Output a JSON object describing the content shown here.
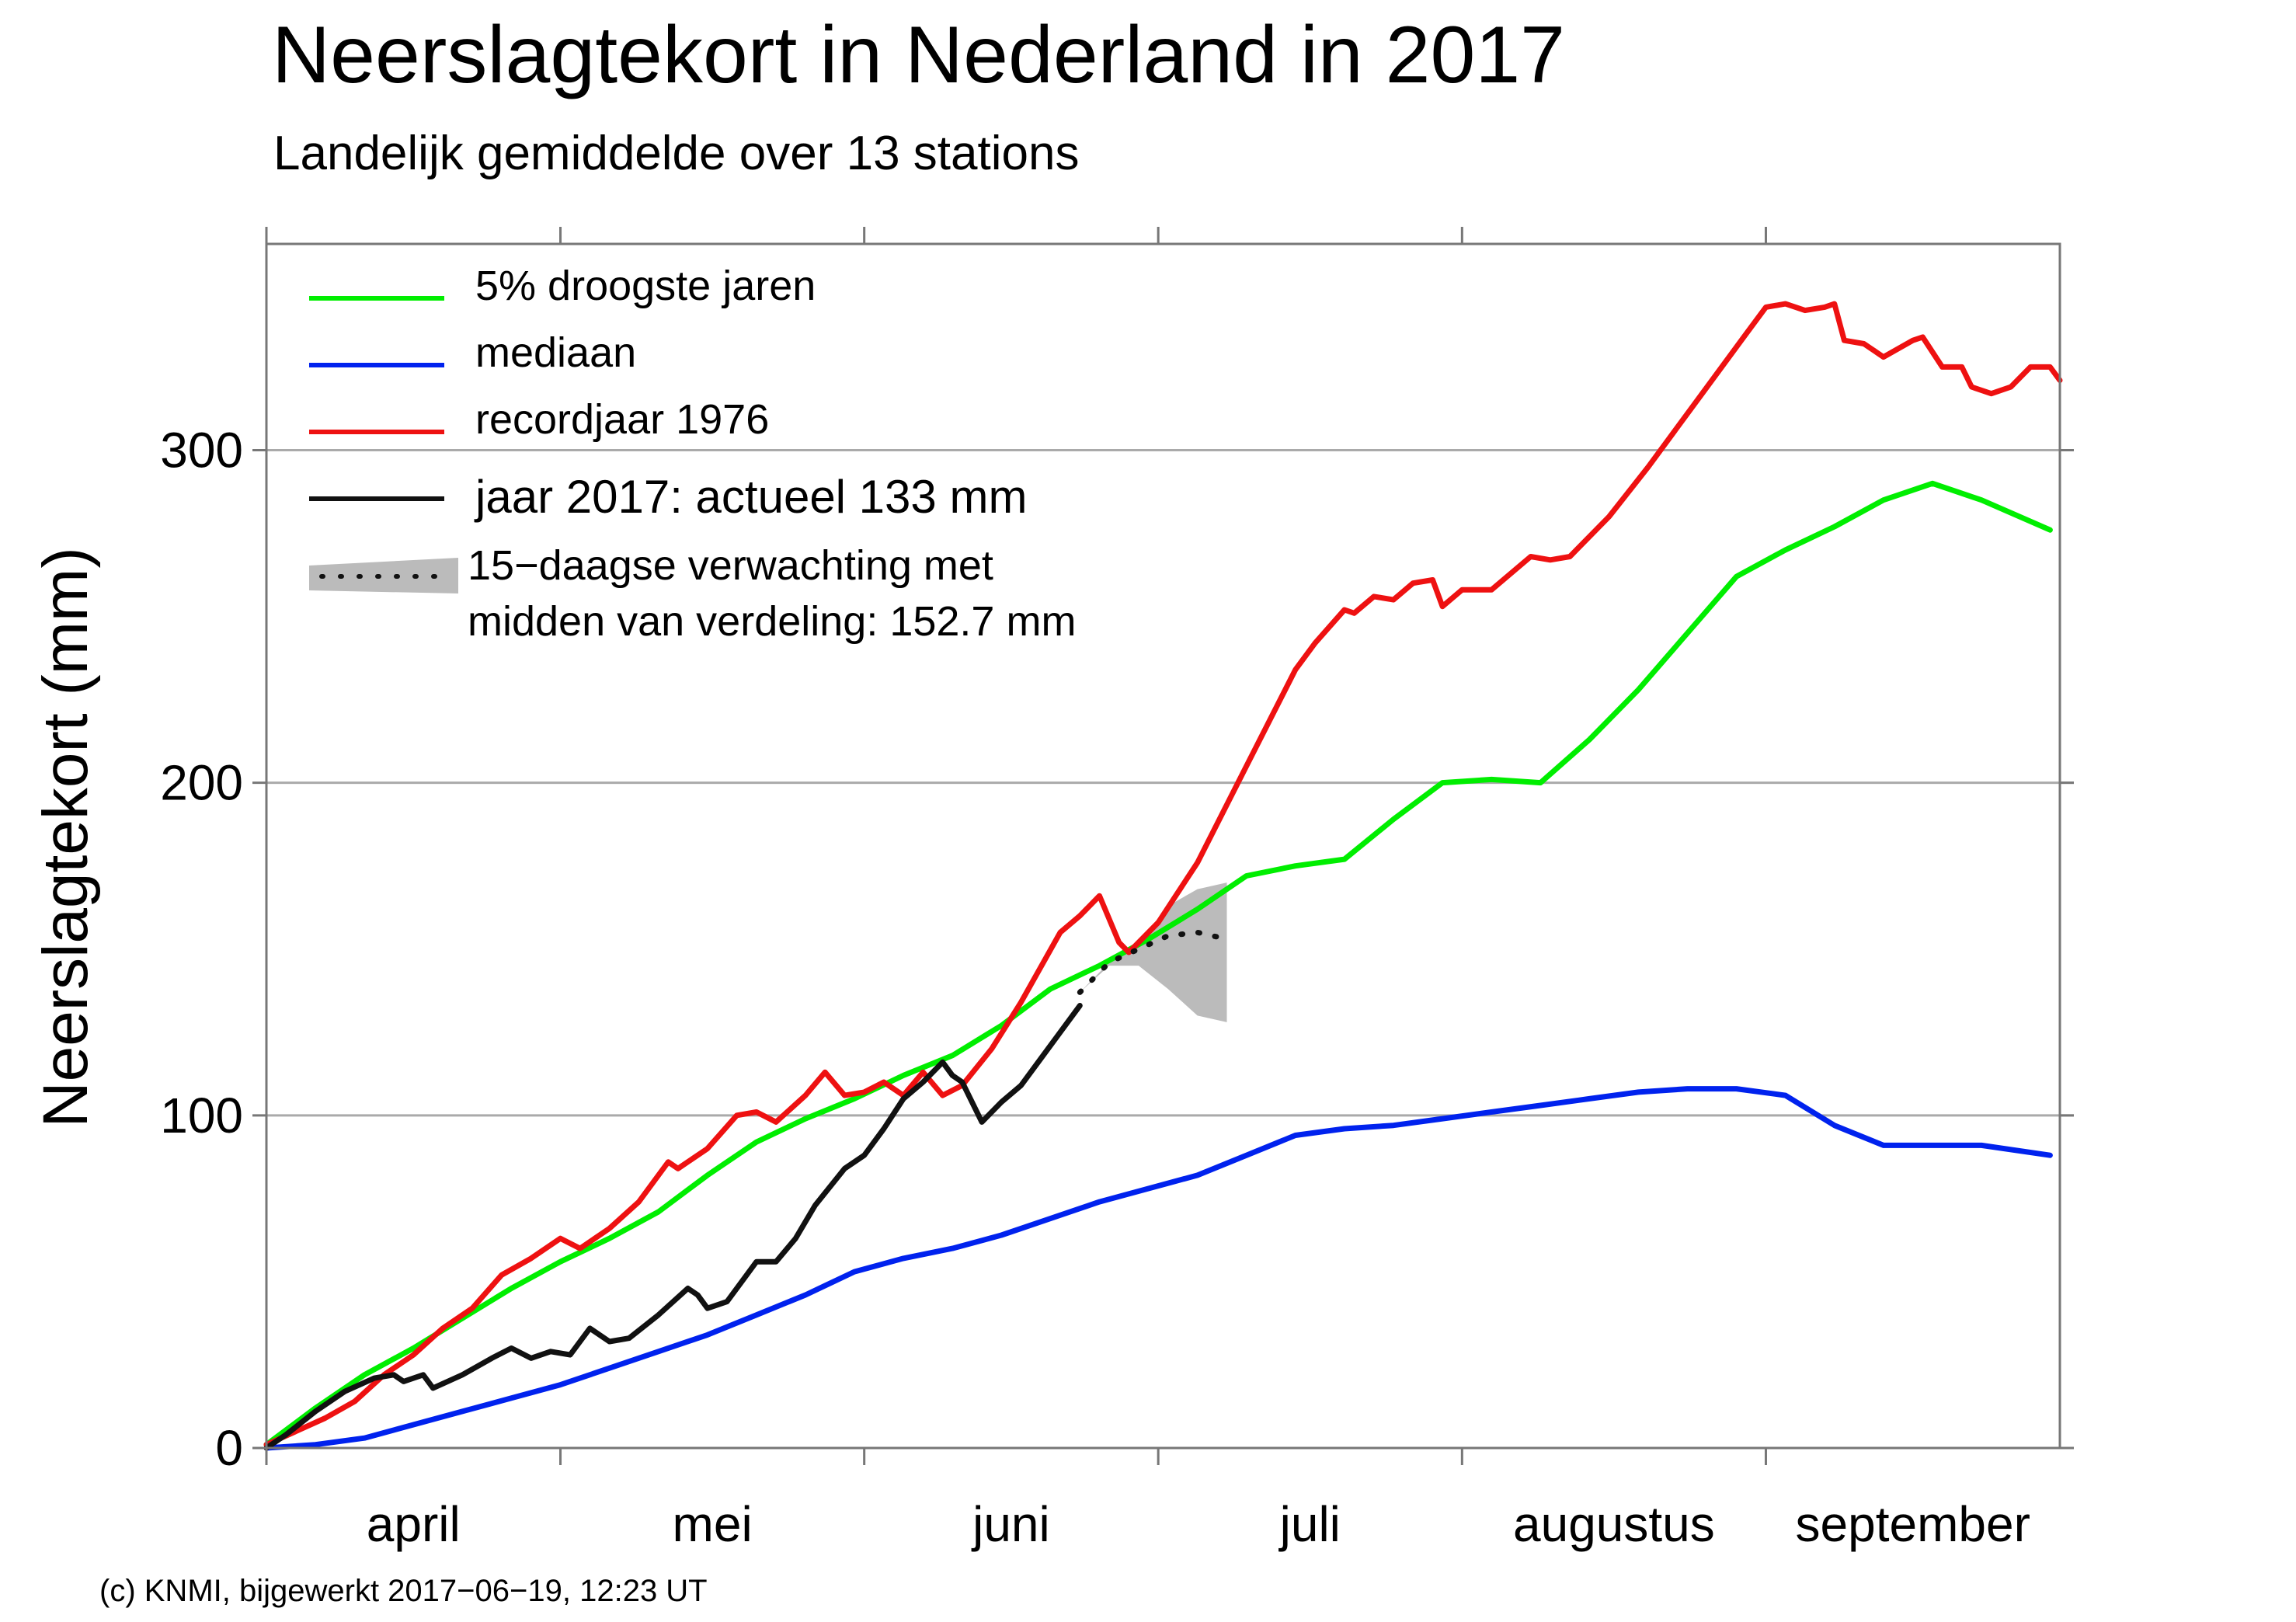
{
  "title": "Neerslagtekort in Nederland in 2017",
  "subtitle": "Landelijk gemiddelde over 13 stations",
  "footer": "(c) KNMI, bijgewerkt 2017−06−19, 12:23 UT",
  "chart_data": {
    "type": "line",
    "title": "Neerslagtekort in Nederland in 2017",
    "subtitle": "Landelijk gemiddelde over 13 stations",
    "xlabel": "",
    "ylabel": "Neerslagtekort (mm)",
    "xlim": [
      "2017-04-01",
      "2017-09-30"
    ],
    "ylim": [
      0,
      362
    ],
    "yticks": [
      0,
      100,
      200,
      300
    ],
    "ytick_labels": [
      "0",
      "100",
      "200",
      "300"
    ],
    "months": [
      {
        "label": "april",
        "start": "2017-04-01",
        "end": "2017-04-30"
      },
      {
        "label": "mei",
        "start": "2017-05-01",
        "end": "2017-05-31"
      },
      {
        "label": "juni",
        "start": "2017-06-01",
        "end": "2017-06-30"
      },
      {
        "label": "juli",
        "start": "2017-07-01",
        "end": "2017-07-31"
      },
      {
        "label": "augustus",
        "start": "2017-08-01",
        "end": "2017-08-31"
      },
      {
        "label": "september",
        "start": "2017-09-01",
        "end": "2017-09-30"
      }
    ],
    "grid": "horizontal",
    "legend_position": "top-left",
    "series": [
      {
        "name": "5% droogste jaren",
        "color": "#00ee00",
        "points": [
          [
            "2017-04-01",
            1
          ],
          [
            "2017-04-06",
            12
          ],
          [
            "2017-04-11",
            22
          ],
          [
            "2017-04-16",
            30
          ],
          [
            "2017-04-21",
            39
          ],
          [
            "2017-04-26",
            48
          ],
          [
            "2017-05-01",
            56
          ],
          [
            "2017-05-06",
            63
          ],
          [
            "2017-05-11",
            71
          ],
          [
            "2017-05-16",
            82
          ],
          [
            "2017-05-21",
            92
          ],
          [
            "2017-05-26",
            99
          ],
          [
            "2017-05-31",
            105
          ],
          [
            "2017-06-05",
            112
          ],
          [
            "2017-06-10",
            118
          ],
          [
            "2017-06-15",
            127
          ],
          [
            "2017-06-20",
            138
          ],
          [
            "2017-06-25",
            145
          ],
          [
            "2017-06-30",
            153
          ],
          [
            "2017-07-05",
            162
          ],
          [
            "2017-07-10",
            172
          ],
          [
            "2017-07-15",
            175
          ],
          [
            "2017-07-20",
            177
          ],
          [
            "2017-07-25",
            189
          ],
          [
            "2017-07-30",
            200
          ],
          [
            "2017-08-04",
            201
          ],
          [
            "2017-08-09",
            200
          ],
          [
            "2017-08-14",
            213
          ],
          [
            "2017-08-19",
            228
          ],
          [
            "2017-08-24",
            245
          ],
          [
            "2017-08-29",
            262
          ],
          [
            "2017-09-03",
            270
          ],
          [
            "2017-09-08",
            277
          ],
          [
            "2017-09-13",
            285
          ],
          [
            "2017-09-18",
            290
          ],
          [
            "2017-09-23",
            285
          ],
          [
            "2017-09-30",
            276
          ]
        ]
      },
      {
        "name": "mediaan",
        "color": "#0022ee",
        "points": [
          [
            "2017-04-01",
            0
          ],
          [
            "2017-04-06",
            1
          ],
          [
            "2017-04-11",
            3
          ],
          [
            "2017-04-16",
            7
          ],
          [
            "2017-04-21",
            11
          ],
          [
            "2017-04-26",
            15
          ],
          [
            "2017-05-01",
            19
          ],
          [
            "2017-05-06",
            24
          ],
          [
            "2017-05-11",
            29
          ],
          [
            "2017-05-16",
            34
          ],
          [
            "2017-05-21",
            40
          ],
          [
            "2017-05-26",
            46
          ],
          [
            "2017-05-31",
            53
          ],
          [
            "2017-06-05",
            57
          ],
          [
            "2017-06-10",
            60
          ],
          [
            "2017-06-15",
            64
          ],
          [
            "2017-06-20",
            69
          ],
          [
            "2017-06-25",
            74
          ],
          [
            "2017-06-30",
            78
          ],
          [
            "2017-07-05",
            82
          ],
          [
            "2017-07-10",
            88
          ],
          [
            "2017-07-15",
            94
          ],
          [
            "2017-07-20",
            96
          ],
          [
            "2017-07-25",
            97
          ],
          [
            "2017-07-30",
            99
          ],
          [
            "2017-08-04",
            101
          ],
          [
            "2017-08-09",
            103
          ],
          [
            "2017-08-14",
            105
          ],
          [
            "2017-08-19",
            107
          ],
          [
            "2017-08-24",
            108
          ],
          [
            "2017-08-29",
            108
          ],
          [
            "2017-09-03",
            106
          ],
          [
            "2017-09-08",
            97
          ],
          [
            "2017-09-13",
            91
          ],
          [
            "2017-09-18",
            91
          ],
          [
            "2017-09-23",
            91
          ],
          [
            "2017-09-30",
            88
          ]
        ]
      },
      {
        "name": "recordjaar 1976",
        "color": "#ee1111",
        "points": [
          [
            "2017-04-01",
            1
          ],
          [
            "2017-04-04",
            5
          ],
          [
            "2017-04-07",
            9
          ],
          [
            "2017-04-10",
            14
          ],
          [
            "2017-04-13",
            22
          ],
          [
            "2017-04-16",
            28
          ],
          [
            "2017-04-19",
            36
          ],
          [
            "2017-04-22",
            42
          ],
          [
            "2017-04-25",
            52
          ],
          [
            "2017-04-28",
            57
          ],
          [
            "2017-05-01",
            63
          ],
          [
            "2017-05-03",
            60
          ],
          [
            "2017-05-06",
            66
          ],
          [
            "2017-05-09",
            74
          ],
          [
            "2017-05-12",
            86
          ],
          [
            "2017-05-13",
            84
          ],
          [
            "2017-05-16",
            90
          ],
          [
            "2017-05-19",
            100
          ],
          [
            "2017-05-21",
            101
          ],
          [
            "2017-05-23",
            98
          ],
          [
            "2017-05-26",
            106
          ],
          [
            "2017-05-28",
            113
          ],
          [
            "2017-05-30",
            106
          ],
          [
            "2017-06-01",
            107
          ],
          [
            "2017-06-03",
            110
          ],
          [
            "2017-06-05",
            106
          ],
          [
            "2017-06-07",
            113
          ],
          [
            "2017-06-09",
            106
          ],
          [
            "2017-06-11",
            109
          ],
          [
            "2017-06-14",
            120
          ],
          [
            "2017-06-17",
            134
          ],
          [
            "2017-06-21",
            155
          ],
          [
            "2017-06-23",
            160
          ],
          [
            "2017-06-25",
            166
          ],
          [
            "2017-06-27",
            152
          ],
          [
            "2017-06-28",
            149
          ],
          [
            "2017-07-01",
            158
          ],
          [
            "2017-07-05",
            176
          ],
          [
            "2017-07-10",
            205
          ],
          [
            "2017-07-15",
            234
          ],
          [
            "2017-07-17",
            242
          ],
          [
            "2017-07-20",
            252
          ],
          [
            "2017-07-21",
            251
          ],
          [
            "2017-07-23",
            256
          ],
          [
            "2017-07-25",
            255
          ],
          [
            "2017-07-27",
            260
          ],
          [
            "2017-07-29",
            261
          ],
          [
            "2017-07-30",
            253
          ],
          [
            "2017-08-01",
            258
          ],
          [
            "2017-08-04",
            258
          ],
          [
            "2017-08-08",
            268
          ],
          [
            "2017-08-10",
            267
          ],
          [
            "2017-08-12",
            268
          ],
          [
            "2017-08-16",
            280
          ],
          [
            "2017-08-20",
            295
          ],
          [
            "2017-08-25",
            315
          ],
          [
            "2017-08-30",
            335
          ],
          [
            "2017-09-01",
            343
          ],
          [
            "2017-09-03",
            344
          ],
          [
            "2017-09-05",
            342
          ],
          [
            "2017-09-07",
            343
          ],
          [
            "2017-09-08",
            344
          ],
          [
            "2017-09-09",
            333
          ],
          [
            "2017-09-11",
            332
          ],
          [
            "2017-09-13",
            328
          ],
          [
            "2017-09-16",
            333
          ],
          [
            "2017-09-17",
            334
          ],
          [
            "2017-09-19",
            325
          ],
          [
            "2017-09-21",
            325
          ],
          [
            "2017-09-22",
            319
          ],
          [
            "2017-09-24",
            317
          ],
          [
            "2017-09-26",
            319
          ],
          [
            "2017-09-28",
            325
          ],
          [
            "2017-09-30",
            325
          ],
          [
            "2017-10-01",
            321
          ]
        ]
      },
      {
        "name": "jaar 2017: actueel 133 mm",
        "color": "#111111",
        "points": [
          [
            "2017-04-01",
            0
          ],
          [
            "2017-04-03",
            4
          ],
          [
            "2017-04-06",
            11
          ],
          [
            "2017-04-09",
            17
          ],
          [
            "2017-04-12",
            21
          ],
          [
            "2017-04-14",
            22
          ],
          [
            "2017-04-15",
            20
          ],
          [
            "2017-04-17",
            22
          ],
          [
            "2017-04-18",
            18
          ],
          [
            "2017-04-21",
            22
          ],
          [
            "2017-04-24",
            27
          ],
          [
            "2017-04-26",
            30
          ],
          [
            "2017-04-28",
            27
          ],
          [
            "2017-04-30",
            29
          ],
          [
            "2017-05-02",
            28
          ],
          [
            "2017-05-04",
            36
          ],
          [
            "2017-05-06",
            32
          ],
          [
            "2017-05-08",
            33
          ],
          [
            "2017-05-11",
            40
          ],
          [
            "2017-05-14",
            48
          ],
          [
            "2017-05-15",
            46
          ],
          [
            "2017-05-16",
            42
          ],
          [
            "2017-05-18",
            44
          ],
          [
            "2017-05-21",
            56
          ],
          [
            "2017-05-23",
            56
          ],
          [
            "2017-05-25",
            63
          ],
          [
            "2017-05-27",
            73
          ],
          [
            "2017-05-30",
            84
          ],
          [
            "2017-06-01",
            88
          ],
          [
            "2017-06-03",
            96
          ],
          [
            "2017-06-05",
            105
          ],
          [
            "2017-06-07",
            110
          ],
          [
            "2017-06-09",
            116
          ],
          [
            "2017-06-10",
            112
          ],
          [
            "2017-06-11",
            110
          ],
          [
            "2017-06-13",
            98
          ],
          [
            "2017-06-15",
            104
          ],
          [
            "2017-06-17",
            109
          ],
          [
            "2017-06-19",
            117
          ],
          [
            "2017-06-21",
            125
          ],
          [
            "2017-06-23",
            133
          ]
        ]
      }
    ],
    "forecast": {
      "label": "15−daagse verwachting met",
      "label2": "midden van verdeling: 152.7 mm",
      "start": "2017-06-23",
      "end": "2017-07-08",
      "median": [
        [
          "2017-06-23",
          137
        ],
        [
          "2017-06-26",
          146
        ],
        [
          "2017-06-29",
          150
        ],
        [
          "2017-07-02",
          154
        ],
        [
          "2017-07-05",
          155
        ],
        [
          "2017-07-08",
          153
        ]
      ],
      "upper": [
        [
          "2017-06-23",
          137
        ],
        [
          "2017-06-26",
          146
        ],
        [
          "2017-06-29",
          152
        ],
        [
          "2017-07-02",
          163
        ],
        [
          "2017-07-05",
          168
        ],
        [
          "2017-07-08",
          170
        ]
      ],
      "lower": [
        [
          "2017-06-23",
          137
        ],
        [
          "2017-06-26",
          145
        ],
        [
          "2017-06-29",
          145
        ],
        [
          "2017-07-02",
          138
        ],
        [
          "2017-07-05",
          130
        ],
        [
          "2017-07-08",
          128
        ]
      ],
      "band_color": "#bbbbbb"
    }
  }
}
